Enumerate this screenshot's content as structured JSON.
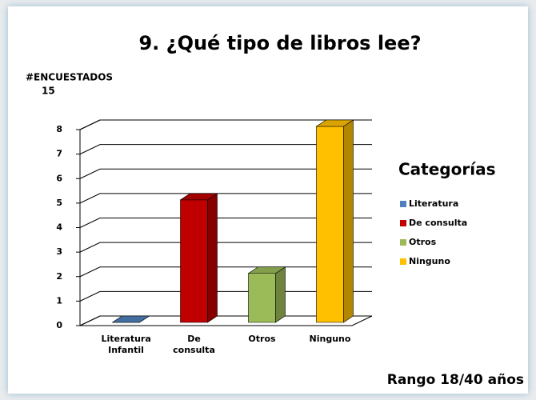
{
  "chart_data": {
    "type": "bar3d",
    "title": "9. ¿Qué tipo de libros lee?",
    "y_label": "#ENCUESTADOS",
    "y_label_note": "15",
    "categories": [
      "Literatura Infantil",
      "De consulta",
      "Otros",
      "Ninguno"
    ],
    "values": [
      0,
      5,
      2,
      8
    ],
    "colors": [
      "#4f81bd",
      "#c00000",
      "#9bbb59",
      "#ffc000"
    ],
    "ylim": [
      0,
      8
    ],
    "yticks": [
      0,
      1,
      2,
      3,
      4,
      5,
      6,
      7,
      8
    ],
    "grid": true,
    "legend": {
      "title": "Categorías",
      "entries": [
        "Literatura",
        "De consulta",
        "Otros",
        "Ninguno"
      ],
      "position": "right"
    },
    "footer": "Rango 18/40 años"
  }
}
